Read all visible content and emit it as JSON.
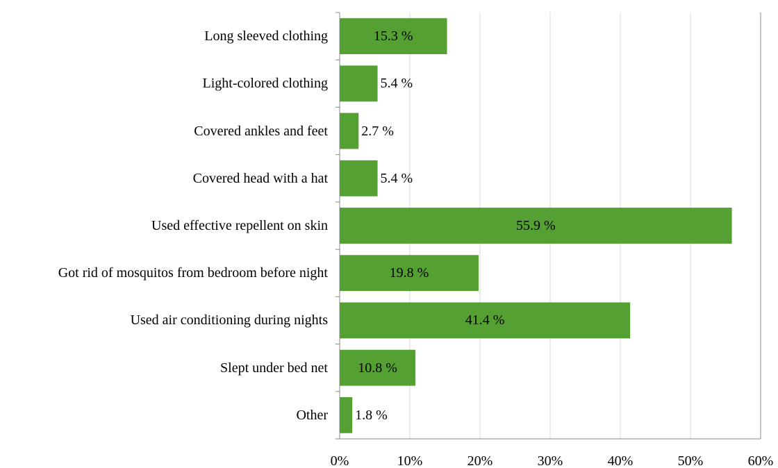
{
  "chart_data": {
    "type": "barh",
    "categories": [
      "Long sleeved clothing",
      "Light-colored clothing",
      "Covered ankles and feet",
      "Covered head with a hat",
      "Used effective repellent on skin",
      "Got rid of mosquitos from bedroom before night",
      "Used air conditioning during nights",
      "Slept under bed net",
      "Other"
    ],
    "values": [
      15.3,
      5.4,
      2.7,
      5.4,
      55.9,
      19.8,
      41.4,
      10.8,
      1.8
    ],
    "value_labels": [
      "15.3 %",
      "5.4 %",
      "2.7 %",
      "5.4 %",
      "55.9 %",
      "19.8 %",
      "41.4 %",
      "10.8 %",
      "1.8 %"
    ],
    "color": "#55a032",
    "xlim": [
      0,
      60
    ],
    "xticks": [
      {
        "value": 0,
        "label": "0%"
      },
      {
        "value": 10,
        "label": "10%"
      },
      {
        "value": 20,
        "label": "20%"
      },
      {
        "value": 30,
        "label": "30%"
      },
      {
        "value": 40,
        "label": "40%"
      },
      {
        "value": 50,
        "label": "50%"
      },
      {
        "value": 60,
        "label": "60%"
      }
    ],
    "grid": true
  }
}
